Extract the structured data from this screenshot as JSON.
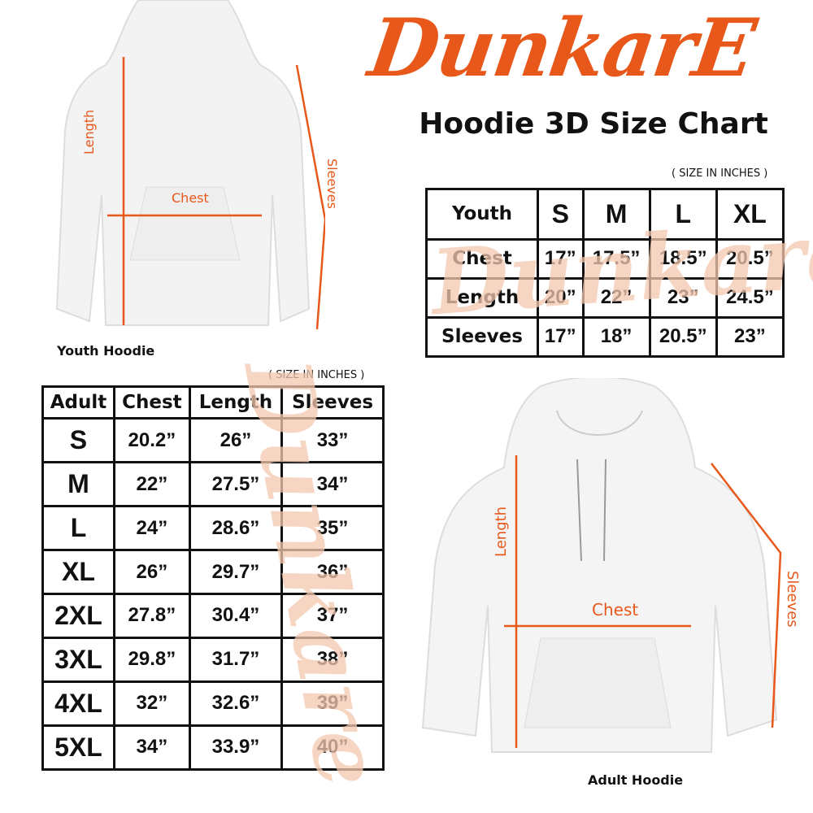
{
  "brand": {
    "logo_text": "DunkarE",
    "color": "#e8581a"
  },
  "title": "Hoodie 3D Size Chart",
  "youth": {
    "unit_note": "( SIZE IN INCHES )",
    "caption": "Youth Hoodie",
    "annotations": {
      "length": "Length",
      "chest": "Chest",
      "sleeves": "Sleeves"
    },
    "headers": [
      "Youth",
      "S",
      "M",
      "L",
      "XL"
    ],
    "rows": [
      [
        "Chest",
        "17”",
        "17.5”",
        "18.5”",
        "20.5”"
      ],
      [
        "Length",
        "20”",
        "22”",
        "23”",
        "24.5”"
      ],
      [
        "Sleeves",
        "17”",
        "18”",
        "20.5”",
        "23”"
      ]
    ]
  },
  "adult": {
    "unit_note": "( SIZE IN INCHES )",
    "caption": "Adult Hoodie",
    "annotations": {
      "length": "Length",
      "chest": "Chest",
      "sleeves": "Sleeves"
    },
    "headers": [
      "Adult",
      "Chest",
      "Length",
      "Sleeves"
    ],
    "rows": [
      [
        "S",
        "20.2”",
        "26”",
        "33”"
      ],
      [
        "M",
        "22”",
        "27.5”",
        "34”"
      ],
      [
        "L",
        "24”",
        "28.6”",
        "35”"
      ],
      [
        "XL",
        "26”",
        "29.7”",
        "36”"
      ],
      [
        "2XL",
        "27.8”",
        "30.4”",
        "37”"
      ],
      [
        "3XL",
        "29.8”",
        "31.7”",
        "38”"
      ],
      [
        "4XL",
        "32”",
        "32.6”",
        "39”"
      ],
      [
        "5XL",
        "34”",
        "33.9”",
        "40”"
      ]
    ]
  }
}
